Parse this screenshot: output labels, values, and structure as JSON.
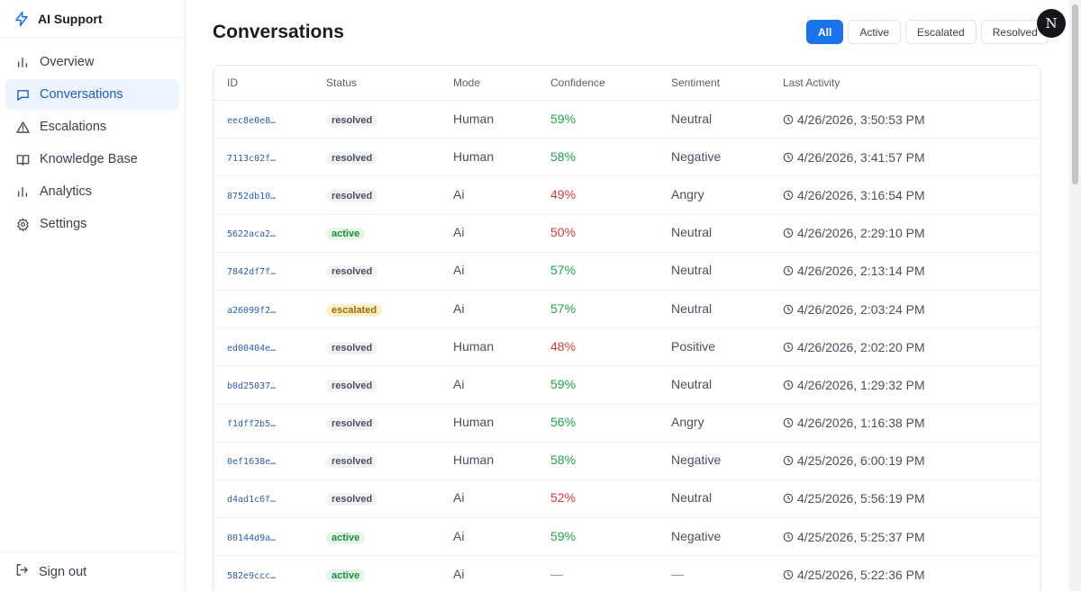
{
  "brand": {
    "title": "AI Support"
  },
  "nav": [
    {
      "label": "Overview",
      "icon": "bar-chart-icon",
      "active": false
    },
    {
      "label": "Conversations",
      "icon": "chat-icon",
      "active": true
    },
    {
      "label": "Escalations",
      "icon": "warning-icon",
      "active": false
    },
    {
      "label": "Knowledge Base",
      "icon": "book-icon",
      "active": false
    },
    {
      "label": "Analytics",
      "icon": "bar-chart-icon",
      "active": false
    },
    {
      "label": "Settings",
      "icon": "gear-icon",
      "active": false
    }
  ],
  "signout": {
    "label": "Sign out"
  },
  "header": {
    "title": "Conversations",
    "filters": [
      "All",
      "Active",
      "Escalated",
      "Resolved"
    ],
    "active_filter": "All",
    "avatar_initial": "N"
  },
  "table": {
    "columns": [
      "ID",
      "Status",
      "Mode",
      "Confidence",
      "Sentiment",
      "Last Activity"
    ],
    "rows": [
      {
        "id": "eec8e0e8…",
        "status": "resolved",
        "mode": "Human",
        "confidence": "59%",
        "conf_level": "good",
        "sentiment": "Neutral",
        "last": "4/26/2026, 3:50:53 PM"
      },
      {
        "id": "7113c02f…",
        "status": "resolved",
        "mode": "Human",
        "confidence": "58%",
        "conf_level": "good",
        "sentiment": "Negative",
        "last": "4/26/2026, 3:41:57 PM"
      },
      {
        "id": "8752db10…",
        "status": "resolved",
        "mode": "Ai",
        "confidence": "49%",
        "conf_level": "bad",
        "sentiment": "Angry",
        "last": "4/26/2026, 3:16:54 PM"
      },
      {
        "id": "5622aca2…",
        "status": "active",
        "mode": "Ai",
        "confidence": "50%",
        "conf_level": "bad",
        "sentiment": "Neutral",
        "last": "4/26/2026, 2:29:10 PM"
      },
      {
        "id": "7842df7f…",
        "status": "resolved",
        "mode": "Ai",
        "confidence": "57%",
        "conf_level": "good",
        "sentiment": "Neutral",
        "last": "4/26/2026, 2:13:14 PM"
      },
      {
        "id": "a26099f2…",
        "status": "escalated",
        "mode": "Ai",
        "confidence": "57%",
        "conf_level": "good",
        "sentiment": "Neutral",
        "last": "4/26/2026, 2:03:24 PM"
      },
      {
        "id": "ed00404e…",
        "status": "resolved",
        "mode": "Human",
        "confidence": "48%",
        "conf_level": "bad",
        "sentiment": "Positive",
        "last": "4/26/2026, 2:02:20 PM"
      },
      {
        "id": "b0d25037…",
        "status": "resolved",
        "mode": "Ai",
        "confidence": "59%",
        "conf_level": "good",
        "sentiment": "Neutral",
        "last": "4/26/2026, 1:29:32 PM"
      },
      {
        "id": "f1dff2b5…",
        "status": "resolved",
        "mode": "Human",
        "confidence": "56%",
        "conf_level": "good",
        "sentiment": "Angry",
        "last": "4/26/2026, 1:16:38 PM"
      },
      {
        "id": "0ef1638e…",
        "status": "resolved",
        "mode": "Human",
        "confidence": "58%",
        "conf_level": "good",
        "sentiment": "Negative",
        "last": "4/25/2026, 6:00:19 PM"
      },
      {
        "id": "d4ad1c6f…",
        "status": "resolved",
        "mode": "Ai",
        "confidence": "52%",
        "conf_level": "bad",
        "sentiment": "Neutral",
        "last": "4/25/2026, 5:56:19 PM"
      },
      {
        "id": "00144d9a…",
        "status": "active",
        "mode": "Ai",
        "confidence": "59%",
        "conf_level": "good",
        "sentiment": "Negative",
        "last": "4/25/2026, 5:25:37 PM"
      },
      {
        "id": "582e9ccc…",
        "status": "active",
        "mode": "Ai",
        "confidence": "—",
        "conf_level": "none",
        "sentiment": "—",
        "last": "4/25/2026, 5:22:36 PM"
      }
    ]
  },
  "colors": {
    "accent": "#1a73e8",
    "good": "#22a24a",
    "bad": "#d13b3b",
    "id_link": "#2a5db0"
  }
}
